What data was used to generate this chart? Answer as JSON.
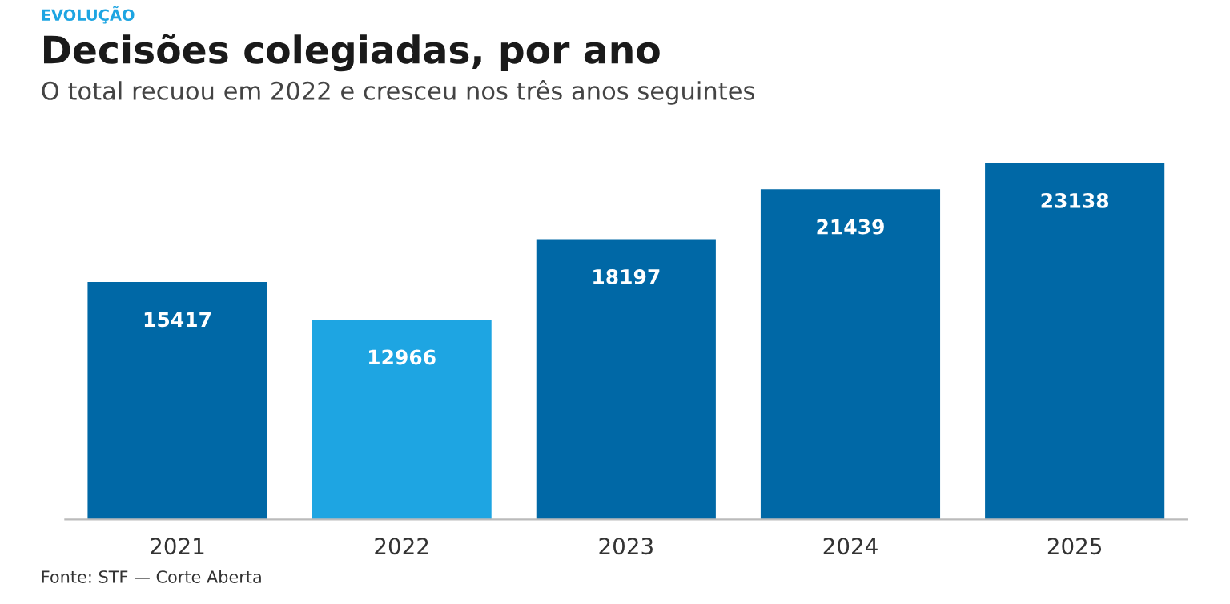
{
  "chart_data": {
    "type": "bar",
    "title": "Decisões colegiadas, por ano",
    "subtitle": "O total recuou em 2022 e cresceu nos três anos seguintes",
    "annotations": [
      "EVOLUÇÃO",
      "Fonte: STF — Corte Aberta"
    ],
    "categories": [
      "2021",
      "2022",
      "2023",
      "2024",
      "2025"
    ],
    "values": [
      15417,
      12966,
      18197,
      21439,
      23138
    ],
    "colors": [
      "#0068a6",
      "#1ea5e2",
      "#0068a6",
      "#0068a6",
      "#0068a6"
    ],
    "data_labels": true
  }
}
